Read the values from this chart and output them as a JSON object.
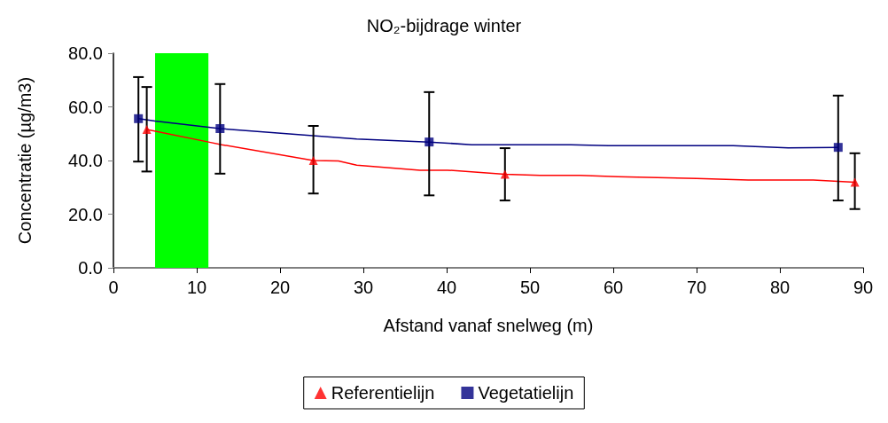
{
  "chart_data": {
    "type": "line",
    "title": "NO₂-bijdrage winter",
    "xlabel": "Afstand vanaf snelweg (m)",
    "ylabel": "Concentratie (µg/m3)",
    "xlim": [
      0,
      90
    ],
    "xticks": [
      0,
      10,
      20,
      30,
      40,
      50,
      60,
      70,
      80,
      90
    ],
    "ylim": [
      0,
      80
    ],
    "yticks": [
      {
        "value": 0,
        "label": "0.0"
      },
      {
        "value": 20,
        "label": "20.0"
      },
      {
        "value": 40,
        "label": "40.0"
      },
      {
        "value": 60,
        "label": "60.0"
      },
      {
        "value": 80,
        "label": "80.0"
      }
    ],
    "grid": false,
    "legend": "bottom",
    "bands": [
      {
        "axis": "x",
        "from": 5.0,
        "to": 11.4,
        "color": "#00ff00"
      }
    ],
    "series": [
      {
        "color": "#ff0000",
        "marker": "none",
        "x": [
          4,
          11.4,
          13,
          24,
          27,
          29.2,
          36.8,
          40.1,
          47,
          51.2,
          56,
          60.5,
          70,
          76.2,
          84,
          89
        ],
        "values": [
          51.6,
          46.9,
          45.9,
          40.0,
          39.8,
          38.3,
          36.4,
          36.4,
          34.9,
          34.5,
          34.5,
          34.0,
          33.3,
          32.7,
          32.7,
          31.9
        ]
      },
      {
        "color": "#000080",
        "marker": "none",
        "x": [
          3,
          5,
          12.8,
          29.2,
          37.9,
          43,
          54.9,
          59.4,
          74.4,
          81,
          87
        ],
        "values": [
          55.6,
          54.7,
          51.9,
          48.0,
          46.9,
          45.9,
          45.9,
          45.5,
          45.5,
          44.7,
          44.9
        ]
      },
      {
        "type": "scatter",
        "name": "Referentielijn",
        "color": "#ff0000",
        "marker": "triangle",
        "x": [
          4,
          24,
          47,
          89
        ],
        "values": [
          51.6,
          40.0,
          34.9,
          31.9
        ],
        "errors": [
          [
            35.9,
            67.4
          ],
          [
            27.7,
            52.9
          ],
          [
            25.1,
            44.6
          ],
          [
            21.9,
            42.7
          ]
        ]
      },
      {
        "type": "scatter",
        "name": "Vegetatielijn",
        "color": "#000080",
        "marker": "square",
        "x": [
          3,
          12.8,
          37.9,
          87
        ],
        "values": [
          55.6,
          51.9,
          46.9,
          44.9
        ],
        "errors": [
          [
            39.6,
            71.1
          ],
          [
            35.1,
            68.5
          ],
          [
            27.0,
            65.5
          ],
          [
            25.1,
            64.2
          ]
        ]
      }
    ]
  }
}
